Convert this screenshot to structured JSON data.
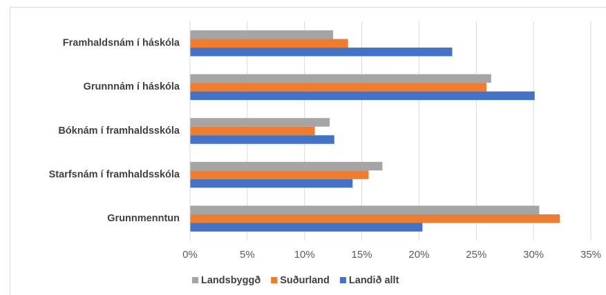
{
  "chart_data": {
    "type": "hbar",
    "categories": [
      "Framhaldsnám í háskóla",
      "Grunnnám í háskóla",
      "Bóknám í framhaldsskóla",
      "Starfsnám í framhaldsskóla",
      "Grunnmenntun"
    ],
    "series": [
      {
        "name": "Landsbyggð",
        "color": "#a5a5a5",
        "values": [
          12.5,
          26.3,
          12.2,
          16.8,
          30.5
        ]
      },
      {
        "name": "Suðurland",
        "color": "#ed7d31",
        "values": [
          13.8,
          25.9,
          10.9,
          15.6,
          32.3
        ]
      },
      {
        "name": "Landið allt",
        "color": "#4472c4",
        "values": [
          22.9,
          30.1,
          12.6,
          14.2,
          20.3
        ]
      }
    ],
    "xlim": [
      0,
      35
    ],
    "xticks": [
      {
        "value": 0,
        "label": "0%"
      },
      {
        "value": 5,
        "label": "5%"
      },
      {
        "value": 10,
        "label": "10%"
      },
      {
        "value": 15,
        "label": "15%"
      },
      {
        "value": 20,
        "label": "20%"
      },
      {
        "value": 25,
        "label": "25%"
      },
      {
        "value": 30,
        "label": "30%"
      },
      {
        "value": 35,
        "label": "35%"
      }
    ],
    "grid": true,
    "legend": "bottom"
  }
}
